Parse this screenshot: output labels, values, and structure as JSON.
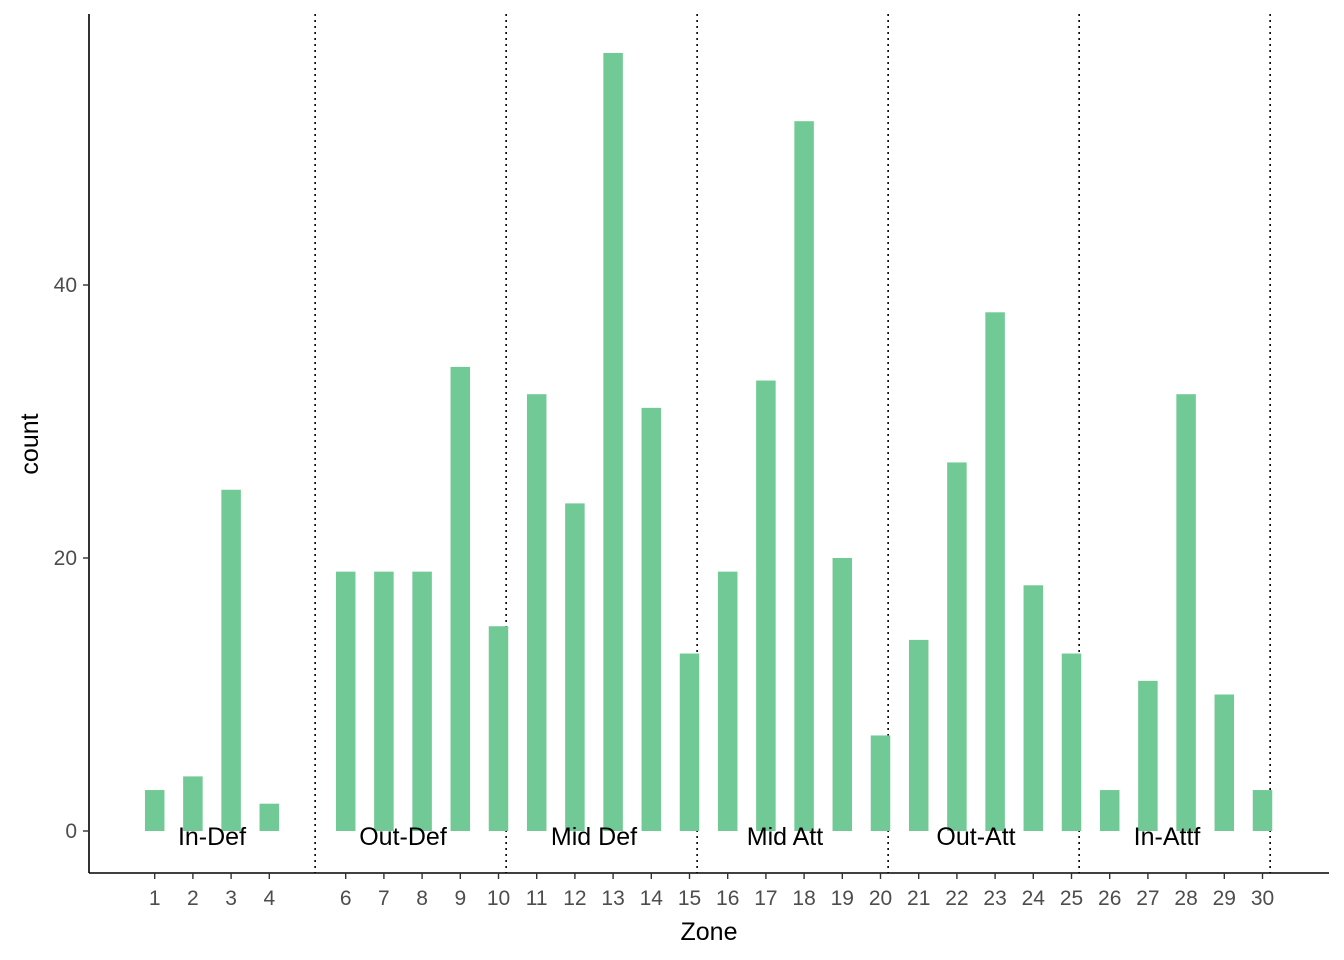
{
  "chart_data": {
    "type": "bar",
    "xlabel": "Zone",
    "ylabel": "count",
    "ylim": [
      -3.1,
      60
    ],
    "yticks": [
      0,
      20,
      40
    ],
    "grid": false,
    "bar_color": "#71c995",
    "x": [
      1,
      2,
      3,
      4,
      6,
      7,
      8,
      9,
      10,
      11,
      12,
      13,
      14,
      15,
      16,
      17,
      18,
      19,
      20,
      21,
      22,
      23,
      24,
      25,
      26,
      27,
      28,
      29,
      30
    ],
    "values": [
      3,
      4,
      25,
      2,
      19,
      19,
      19,
      34,
      15,
      32,
      24,
      57,
      31,
      13,
      19,
      33,
      52,
      20,
      7,
      14,
      27,
      38,
      18,
      13,
      3,
      11,
      32,
      10,
      3
    ],
    "section_separators": [
      5.2,
      10.2,
      15.2,
      20.2,
      25.2,
      30.2
    ],
    "sections": [
      {
        "label": "In-Def",
        "x": 2.5
      },
      {
        "label": "Out-Def",
        "x": 7.5
      },
      {
        "label": "Mid Def",
        "x": 12.5
      },
      {
        "label": "Mid Att",
        "x": 17.5
      },
      {
        "label": "Out-Att",
        "x": 22.5
      },
      {
        "label": "In-Attf",
        "x": 27.5
      }
    ]
  }
}
